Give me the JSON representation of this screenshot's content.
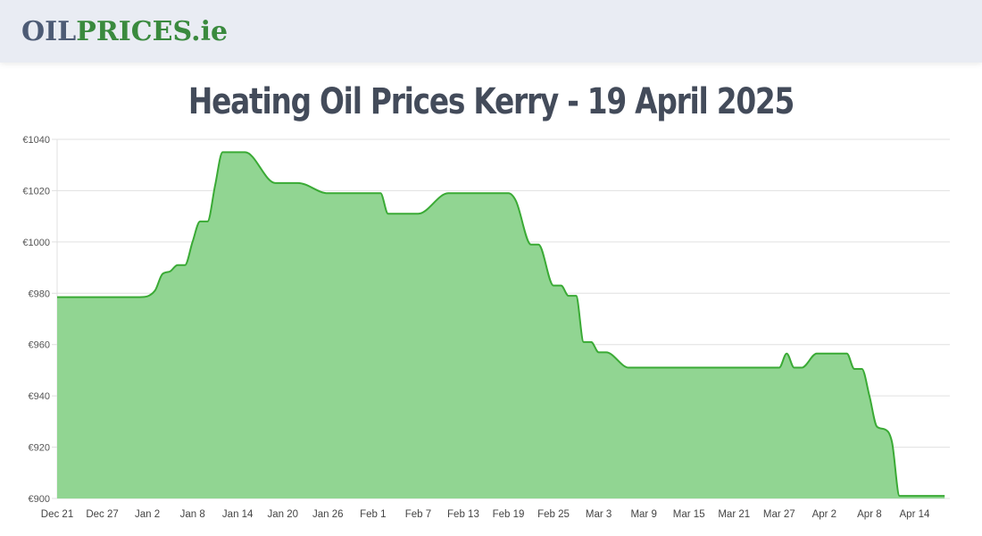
{
  "header": {
    "logo_part1": "OIL",
    "logo_part2": "PRICES.ie"
  },
  "page": {
    "title": "Heating Oil Prices Kerry - 19 April 2025"
  },
  "colors": {
    "line": "#3aaa35",
    "fill": "#91d592",
    "logo_dark": "#4d5b75",
    "logo_green": "#3a8a3e",
    "title": "#434b5a",
    "grid": "#e0e0e0"
  },
  "chart_data": {
    "type": "area",
    "title": "Heating Oil Prices Kerry - 19 April 2025",
    "xlabel": "",
    "ylabel": "",
    "ylim": [
      900,
      1040
    ],
    "y_ticks": [
      "€1040",
      "€1020",
      "€1000",
      "€980",
      "€960",
      "€940",
      "€920",
      "€900"
    ],
    "y_tick_values": [
      1040,
      1020,
      1000,
      980,
      960,
      940,
      920,
      900
    ],
    "x_ticks": [
      "Dec 21",
      "Dec 27",
      "Jan 2",
      "Jan 8",
      "Jan 14",
      "Jan 20",
      "Jan 26",
      "Feb 1",
      "Feb 7",
      "Feb 13",
      "Feb 19",
      "Feb 25",
      "Mar 3",
      "Mar 9",
      "Mar 15",
      "Mar 21",
      "Mar 27",
      "Apr 2",
      "Apr 8",
      "Apr 14"
    ],
    "grid": true,
    "legend": "none",
    "currency": "€",
    "x_day_offsets": [
      0,
      6,
      11,
      13,
      14,
      15,
      16,
      17,
      18,
      19,
      20,
      21,
      22,
      23,
      24,
      25,
      29,
      30,
      31,
      32,
      36,
      39,
      43,
      44,
      47,
      48,
      52,
      53,
      60,
      61,
      63,
      64,
      66,
      67,
      68,
      69,
      70,
      71,
      72,
      73,
      76,
      80,
      83,
      95,
      96,
      97,
      98,
      99,
      101,
      102,
      105,
      106,
      107,
      108,
      109,
      110,
      111,
      112,
      113,
      115,
      118
    ],
    "values": [
      978.5,
      978.5,
      978.5,
      981,
      987.5,
      988.5,
      991,
      991,
      1000,
      1008,
      1008,
      1022,
      1035,
      1035,
      1035,
      1035,
      1023,
      1023,
      1023,
      1023,
      1019,
      1019,
      1019,
      1011,
      1011,
      1011,
      1019,
      1019,
      1019,
      1016,
      999,
      999,
      983,
      983,
      979,
      979,
      961,
      961,
      957,
      957,
      951,
      951,
      951,
      951,
      951,
      956.5,
      951,
      951,
      956.5,
      956.5,
      956.5,
      950.5,
      950.5,
      940,
      928,
      927,
      922,
      901,
      901,
      901,
      901
    ]
  }
}
